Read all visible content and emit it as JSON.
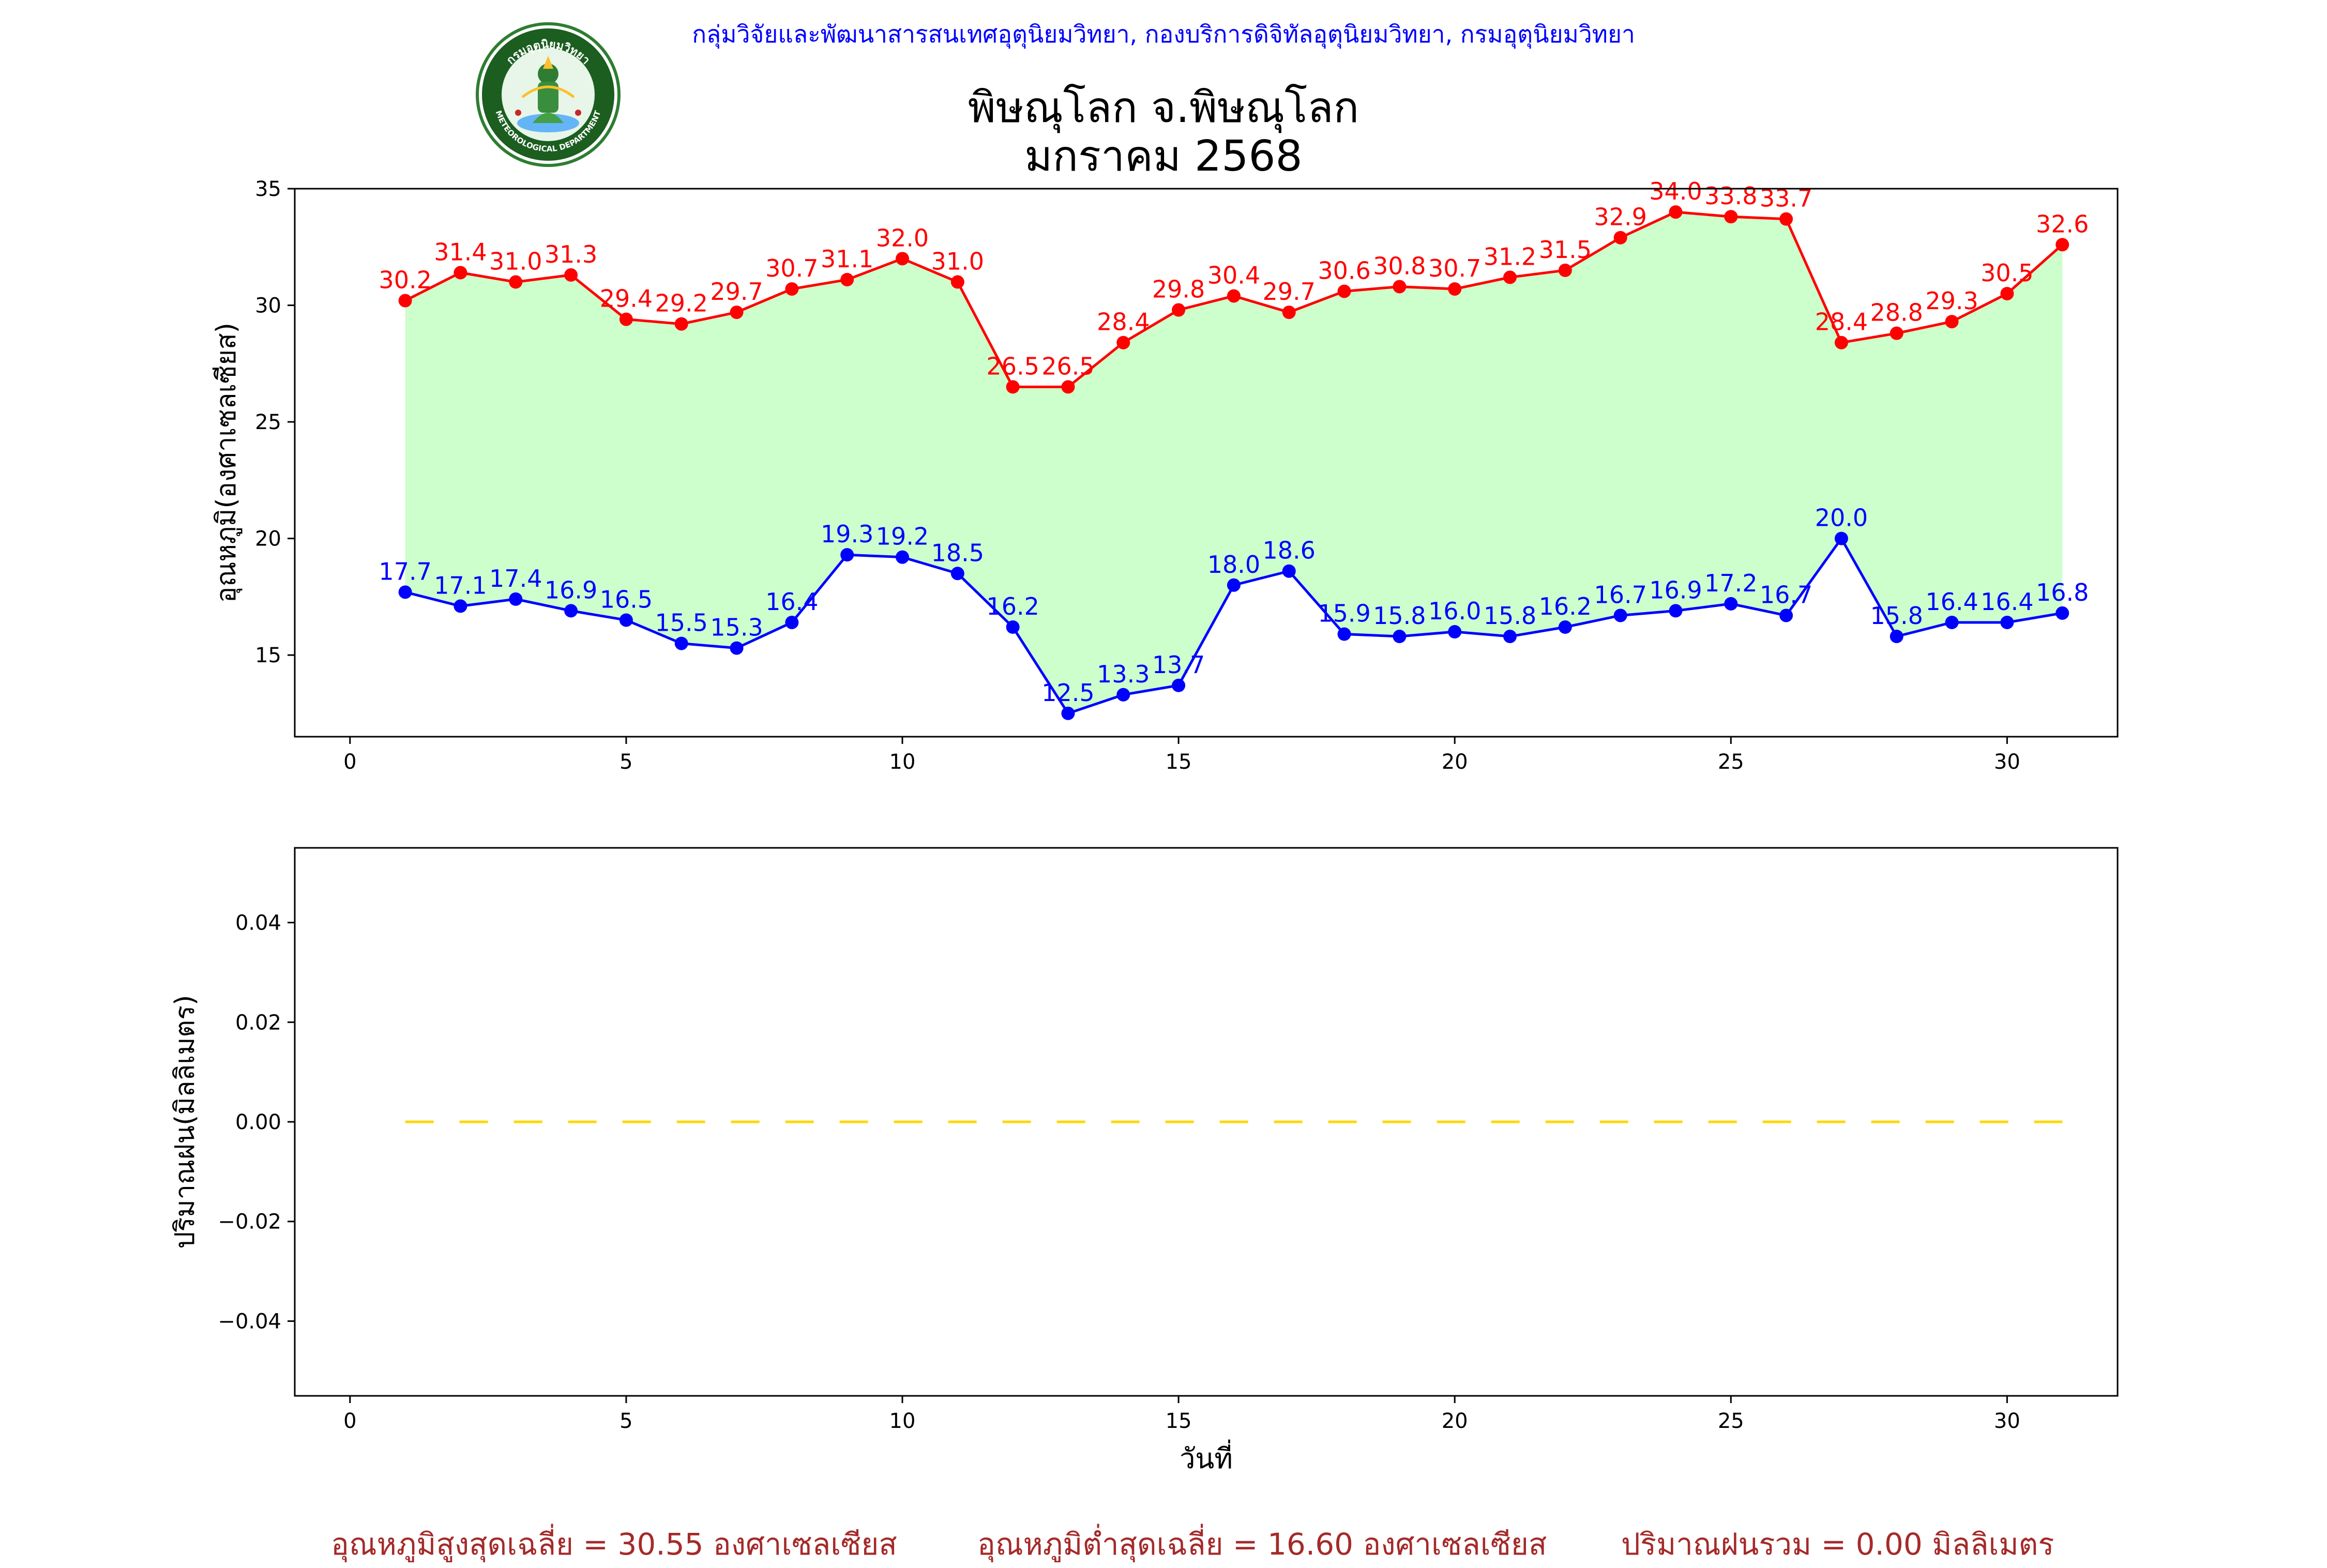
{
  "header": {
    "organization_line": "กลุ่มวิจัยและพัฒนาสารสนเทศอุตุนิยมวิทยา, กองบริการดิจิทัลอุตุนิยมวิทยา, กรมอุตุนิยมวิทยา",
    "logo_icon": "meteorological-department-seal-icon",
    "logo_text_top": "กรมอุตุนิยมวิทยา",
    "logo_text_bottom": "METEOROLOGICAL DEPARTMENT"
  },
  "title": {
    "line1": "พิษณุโลก จ.พิษณุโลก",
    "line2": "มกราคม 2568"
  },
  "colors": {
    "max_temp": "#ff0000",
    "min_temp": "#0000ff",
    "fill": "#ccffcc",
    "rain": "#ffd700",
    "footer_text": "#a52a2a",
    "header_text": "#0000ff"
  },
  "chart_data": [
    {
      "type": "line",
      "ylabel": "อุณหภูมิ(องศาเซลเซียส)",
      "xlabel": "",
      "xlim": [
        -1,
        32
      ],
      "ylim": [
        11.5,
        35
      ],
      "xticks": [
        0,
        5,
        10,
        15,
        20,
        25,
        30
      ],
      "yticks": [
        15,
        20,
        25,
        30,
        35
      ],
      "x": [
        1,
        2,
        3,
        4,
        5,
        6,
        7,
        8,
        9,
        10,
        11,
        12,
        13,
        14,
        15,
        16,
        17,
        18,
        19,
        20,
        21,
        22,
        23,
        24,
        25,
        26,
        27,
        28,
        29,
        30,
        31
      ],
      "series": [
        {
          "key": "max",
          "values": [
            30.2,
            31.4,
            31.0,
            31.3,
            29.4,
            29.2,
            29.7,
            30.7,
            31.1,
            32.0,
            31.0,
            26.5,
            26.5,
            28.4,
            29.8,
            30.4,
            29.7,
            30.6,
            30.8,
            30.7,
            31.2,
            31.5,
            32.9,
            34.0,
            33.8,
            33.7,
            28.4,
            28.8,
            29.3,
            30.5,
            32.6
          ]
        },
        {
          "key": "min",
          "values": [
            17.7,
            17.1,
            17.4,
            16.9,
            16.5,
            15.5,
            15.3,
            16.4,
            19.3,
            19.2,
            18.5,
            16.2,
            12.5,
            13.3,
            13.7,
            18.0,
            18.6,
            15.9,
            15.8,
            16.0,
            15.8,
            16.2,
            16.7,
            16.9,
            17.2,
            16.7,
            20.0,
            15.8,
            16.4,
            16.4,
            16.8
          ]
        }
      ],
      "grid": false
    },
    {
      "type": "line",
      "xlabel": "วันที่",
      "ylabel": "ปริมาณฝน(มิลลิเมตร)",
      "xlim": [
        -1,
        32
      ],
      "ylim": [
        -0.055,
        0.055
      ],
      "xticks": [
        0,
        5,
        10,
        15,
        20,
        25,
        30
      ],
      "yticks": [
        0.04,
        0.02,
        0.0,
        -0.02,
        -0.04
      ],
      "ytick_labels": [
        "0.04",
        "0.02",
        "0.00",
        "−0.02",
        "−0.04"
      ],
      "x": [
        1,
        2,
        3,
        4,
        5,
        6,
        7,
        8,
        9,
        10,
        11,
        12,
        13,
        14,
        15,
        16,
        17,
        18,
        19,
        20,
        21,
        22,
        23,
        24,
        25,
        26,
        27,
        28,
        29,
        30,
        31
      ],
      "series": [
        {
          "key": "rain",
          "values": [
            0,
            0,
            0,
            0,
            0,
            0,
            0,
            0,
            0,
            0,
            0,
            0,
            0,
            0,
            0,
            0,
            0,
            0,
            0,
            0,
            0,
            0,
            0,
            0,
            0,
            0,
            0,
            0,
            0,
            0,
            0
          ]
        }
      ],
      "grid": false
    }
  ],
  "footer": {
    "avg_max": "อุณหภูมิสูงสุดเฉลี่ย = 30.55 องศาเซลเซียส",
    "avg_min": "อุณหภูมิต่ำสุดเฉลี่ย = 16.60 องศาเซลเซียส",
    "total_rain": "ปริมาณฝนรวม = 0.00 มิลลิเมตร"
  }
}
